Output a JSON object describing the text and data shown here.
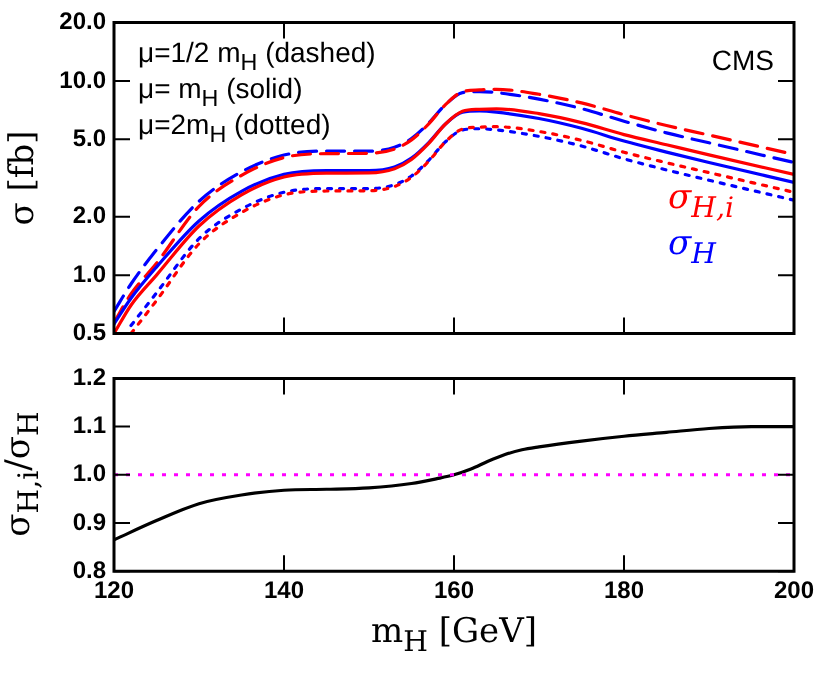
{
  "chart_data": [
    {
      "type": "line",
      "ylabel": "σ [fb]",
      "log": "y",
      "grid": false,
      "legend": "right",
      "marker": "none",
      "tick_labels": "y",
      "x": [
        120,
        122,
        125,
        130,
        135,
        140,
        145,
        150,
        153,
        155,
        157,
        159,
        161,
        163,
        165,
        170,
        175,
        180,
        185,
        190,
        200
      ],
      "xlim": [
        120,
        200
      ],
      "xticks": [
        120,
        140,
        160,
        180,
        200
      ],
      "ylim": [
        0.5,
        20
      ],
      "yticks": [
        {
          "value": 0.5,
          "label": "0.5"
        },
        {
          "value": 1,
          "label": "1.0"
        },
        {
          "value": 2,
          "label": "2.0"
        },
        {
          "value": 5,
          "label": "5.0"
        },
        {
          "value": 10,
          "label": "10.0"
        },
        {
          "value": 20,
          "label": "20.0"
        }
      ],
      "annotations": [
        "μ=1/2 m$_{H}$ (dashed)",
        "μ= m$_{H}$ (solid)",
        "μ=2m$_{H}$ (dotted)",
        "CMS"
      ],
      "series": [
        {
          "name": "σ$_{H,i}$",
          "color": "#ff0000",
          "line_style": "solid",
          "values": [
            0.5,
            0.7,
            1.0,
            1.79,
            2.59,
            3.2,
            3.35,
            3.36,
            3.53,
            3.94,
            4.75,
            6.0,
            6.97,
            7.14,
            7.18,
            6.78,
            6.1,
            5.29,
            4.69,
            4.16,
            3.3
          ]
        },
        {
          "name": "σ$_{H}$",
          "color": "#0000ff",
          "line_style": "solid",
          "values": [
            0.56,
            0.76,
            1.1,
            1.9,
            2.7,
            3.3,
            3.45,
            3.45,
            3.6,
            4.0,
            4.8,
            6.0,
            6.9,
            7.0,
            6.9,
            6.4,
            5.7,
            4.9,
            4.3,
            3.8,
            3.0
          ]
        },
        {
          "color": "#ff0000",
          "line_style": "dashed",
          "values": [
            0.57,
            0.8,
            1.15,
            2.26,
            3.26,
            4.03,
            4.22,
            4.24,
            4.46,
            4.97,
            5.99,
            7.55,
            8.79,
            8.98,
            9.05,
            8.53,
            7.7,
            6.7,
            5.89,
            5.26,
            4.18
          ]
        },
        {
          "color": "#0000ff",
          "line_style": "dashed",
          "values": [
            0.65,
            0.9,
            1.35,
            2.4,
            3.4,
            4.15,
            4.35,
            4.35,
            4.55,
            5.05,
            6.05,
            7.55,
            8.7,
            8.8,
            8.7,
            8.05,
            7.2,
            6.2,
            5.4,
            4.8,
            3.8
          ]
        },
        {
          "color": "#ff0000",
          "line_style": "dotted",
          "values": [
            null,
            0.5,
            0.74,
            1.45,
            2.1,
            2.59,
            2.71,
            2.72,
            2.86,
            3.19,
            3.85,
            4.86,
            5.65,
            5.78,
            5.81,
            5.49,
            4.94,
            4.29,
            3.79,
            3.37,
            2.67
          ]
        },
        {
          "color": "#0000ff",
          "line_style": "dotted",
          "values": [
            null,
            0.55,
            0.81,
            1.54,
            2.19,
            2.67,
            2.79,
            2.79,
            2.92,
            3.24,
            3.89,
            4.86,
            5.59,
            5.67,
            5.59,
            5.18,
            4.62,
            3.97,
            3.48,
            3.08,
            2.43
          ]
        }
      ]
    },
    {
      "type": "line",
      "xlabel": "m$_{H}$ [GeV]",
      "ylabel": "σ$_{H,i}$/σ$_{H}$",
      "grid": false,
      "marker": "none",
      "x": [
        120,
        125,
        130,
        135,
        140,
        145,
        150,
        155,
        158,
        160,
        162,
        164,
        166,
        168,
        170,
        175,
        180,
        185,
        190,
        195,
        200
      ],
      "xlim": [
        120,
        200
      ],
      "xticks": [
        120,
        140,
        160,
        180,
        200
      ],
      "ylim": [
        0.8,
        1.2
      ],
      "yticks": [
        {
          "value": 0.8,
          "label": "0.8"
        },
        {
          "value": 0.9,
          "label": "0.9"
        },
        {
          "value": 1.0,
          "label": "1.0"
        },
        {
          "value": 1.1,
          "label": "1.1"
        },
        {
          "value": 1.2,
          "label": "1.2"
        }
      ],
      "series": [
        {
          "color": "#000000",
          "line_style": "solid",
          "values": [
            0.865,
            0.905,
            0.94,
            0.958,
            0.968,
            0.97,
            0.973,
            0.982,
            0.992,
            1.0,
            1.012,
            1.028,
            1.042,
            1.052,
            1.058,
            1.07,
            1.08,
            1.088,
            1.096,
            1.1,
            1.1
          ]
        }
      ],
      "ref_lines": [
        {
          "axis": "y",
          "value": 1.0,
          "color": "#ff00ff",
          "line_style": "dotted"
        }
      ]
    }
  ]
}
